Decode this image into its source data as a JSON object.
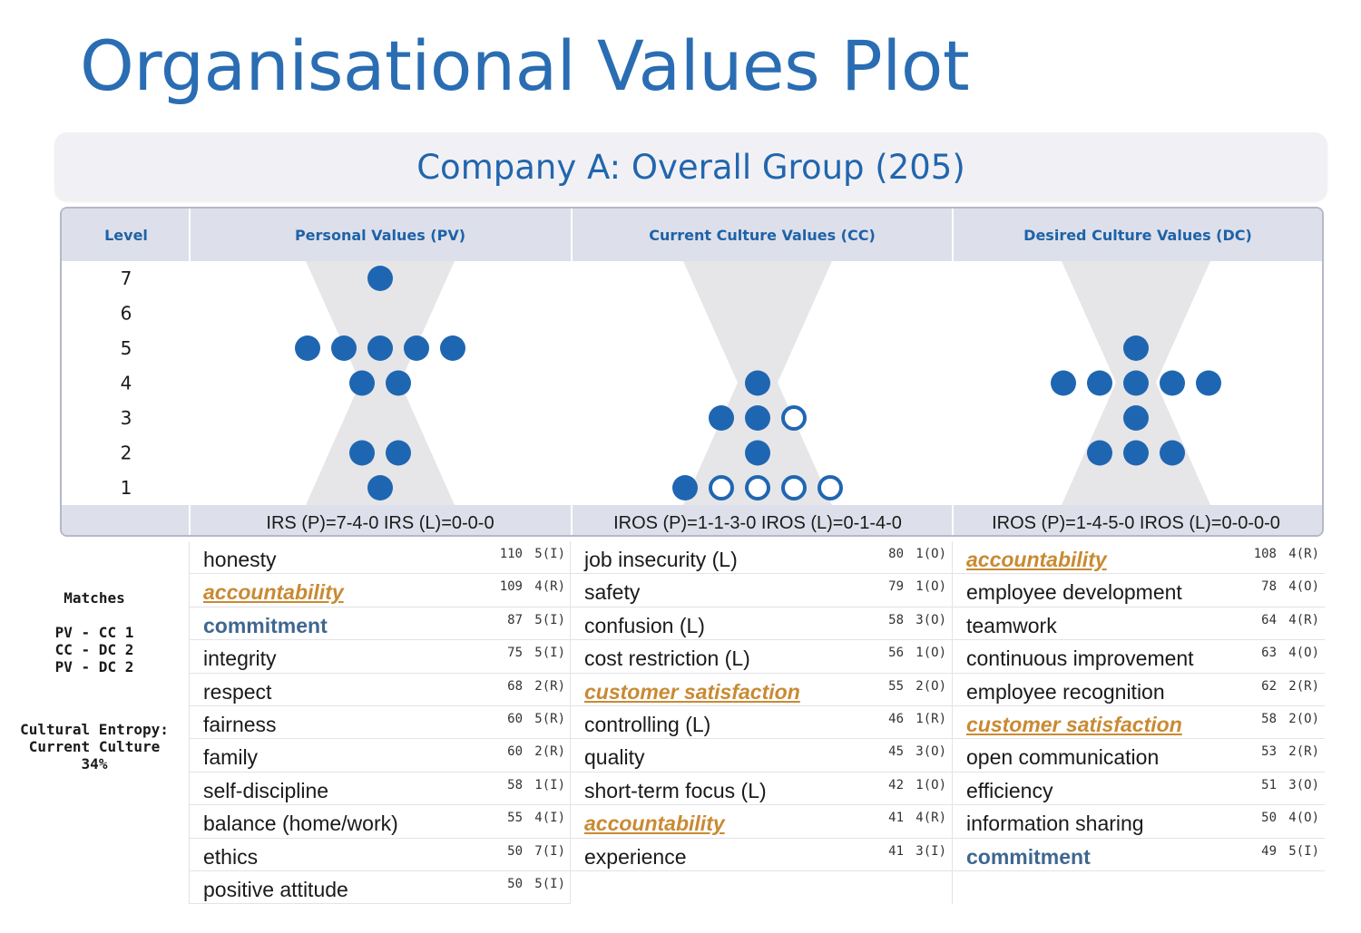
{
  "page_title": "Organisational Values Plot",
  "subtitle": "Company A: Overall Group (205)",
  "headers": {
    "level": "Level",
    "pv": "Personal Values (PV)",
    "cc": "Current Culture Values (CC)",
    "dc": "Desired Culture Values (DC)"
  },
  "colors": {
    "title": "#2a6db3",
    "dot": "#1f66b2",
    "hourglass": "#e6e6e8",
    "header_bg": "#dde0ea",
    "orange": "#c98a33",
    "navy": "#3f6790"
  },
  "chart_data": {
    "type": "scatter",
    "levels": [
      "7",
      "6",
      "5",
      "4",
      "3",
      "2",
      "1"
    ],
    "columns": [
      {
        "key": "pv",
        "name": "Personal Values (PV)",
        "dots": [
          {
            "level": 7,
            "filled": 1,
            "hollow": 0
          },
          {
            "level": 5,
            "filled": 5,
            "hollow": 0
          },
          {
            "level": 4,
            "filled": 2,
            "hollow": 0
          },
          {
            "level": 2,
            "filled": 2,
            "hollow": 0
          },
          {
            "level": 1,
            "filled": 1,
            "hollow": 0
          }
        ],
        "footer": "IRS (P)=7-4-0  IRS (L)=0-0-0"
      },
      {
        "key": "cc",
        "name": "Current Culture Values (CC)",
        "dots": [
          {
            "level": 4,
            "filled": 1,
            "hollow": 0
          },
          {
            "level": 3,
            "filled": 2,
            "hollow": 1
          },
          {
            "level": 2,
            "filled": 1,
            "hollow": 0
          },
          {
            "level": 1,
            "filled": 1,
            "hollow": 4
          }
        ],
        "footer": "IROS (P)=1-1-3-0  IROS (L)=0-1-4-0"
      },
      {
        "key": "dc",
        "name": "Desired Culture Values (DC)",
        "dots": [
          {
            "level": 5,
            "filled": 1,
            "hollow": 0
          },
          {
            "level": 4,
            "filled": 5,
            "hollow": 0
          },
          {
            "level": 3,
            "filled": 1,
            "hollow": 0
          },
          {
            "level": 2,
            "filled": 3,
            "hollow": 0
          }
        ],
        "footer": "IROS (P)=1-4-5-0  IROS (L)=0-0-0-0"
      }
    ]
  },
  "side": {
    "matches_label": "Matches",
    "matches": [
      "PV - CC 1",
      "CC - DC 2",
      "PV - DC 2"
    ],
    "entropy": [
      "Cultural Entropy:",
      "Current Culture",
      "34%"
    ]
  },
  "lists": {
    "pv": [
      {
        "name": "honesty",
        "count": "110",
        "code": "5(I)",
        "style": "normal"
      },
      {
        "name": "accountability",
        "count": "109",
        "code": "4(R)",
        "style": "orange"
      },
      {
        "name": "commitment",
        "count": "87",
        "code": "5(I)",
        "style": "navy"
      },
      {
        "name": "integrity",
        "count": "75",
        "code": "5(I)",
        "style": "normal"
      },
      {
        "name": "respect",
        "count": "68",
        "code": "2(R)",
        "style": "normal"
      },
      {
        "name": "fairness",
        "count": "60",
        "code": "5(R)",
        "style": "normal"
      },
      {
        "name": "family",
        "count": "60",
        "code": "2(R)",
        "style": "normal"
      },
      {
        "name": "self-discipline",
        "count": "58",
        "code": "1(I)",
        "style": "normal"
      },
      {
        "name": "balance (home/work)",
        "count": "55",
        "code": "4(I)",
        "style": "normal"
      },
      {
        "name": "ethics",
        "count": "50",
        "code": "7(I)",
        "style": "normal"
      },
      {
        "name": "positive attitude",
        "count": "50",
        "code": "5(I)",
        "style": "normal"
      }
    ],
    "cc": [
      {
        "name": "job insecurity (L)",
        "count": "80",
        "code": "1(O)",
        "style": "normal"
      },
      {
        "name": "safety",
        "count": "79",
        "code": "1(O)",
        "style": "normal"
      },
      {
        "name": "confusion (L)",
        "count": "58",
        "code": "3(O)",
        "style": "normal"
      },
      {
        "name": "cost restriction (L)",
        "count": "56",
        "code": "1(O)",
        "style": "normal"
      },
      {
        "name": "customer satisfaction",
        "count": "55",
        "code": "2(O)",
        "style": "orange"
      },
      {
        "name": "controlling (L)",
        "count": "46",
        "code": "1(R)",
        "style": "normal"
      },
      {
        "name": "quality",
        "count": "45",
        "code": "3(O)",
        "style": "normal"
      },
      {
        "name": "short-term focus (L)",
        "count": "42",
        "code": "1(O)",
        "style": "normal"
      },
      {
        "name": "accountability",
        "count": "41",
        "code": "4(R)",
        "style": "orange"
      },
      {
        "name": "experience",
        "count": "41",
        "code": "3(I)",
        "style": "normal"
      }
    ],
    "dc": [
      {
        "name": "accountability",
        "count": "108",
        "code": "4(R)",
        "style": "orange"
      },
      {
        "name": "employee development",
        "count": "78",
        "code": "4(O)",
        "style": "normal"
      },
      {
        "name": "teamwork",
        "count": "64",
        "code": "4(R)",
        "style": "normal"
      },
      {
        "name": "continuous improvement",
        "count": "63",
        "code": "4(O)",
        "style": "normal"
      },
      {
        "name": "employee recognition",
        "count": "62",
        "code": "2(R)",
        "style": "normal"
      },
      {
        "name": "customer satisfaction",
        "count": "58",
        "code": "2(O)",
        "style": "orange"
      },
      {
        "name": "open communication",
        "count": "53",
        "code": "2(R)",
        "style": "normal"
      },
      {
        "name": "efficiency",
        "count": "51",
        "code": "3(O)",
        "style": "normal"
      },
      {
        "name": "information sharing",
        "count": "50",
        "code": "4(O)",
        "style": "normal"
      },
      {
        "name": "commitment",
        "count": "49",
        "code": "5(I)",
        "style": "navy"
      }
    ]
  }
}
